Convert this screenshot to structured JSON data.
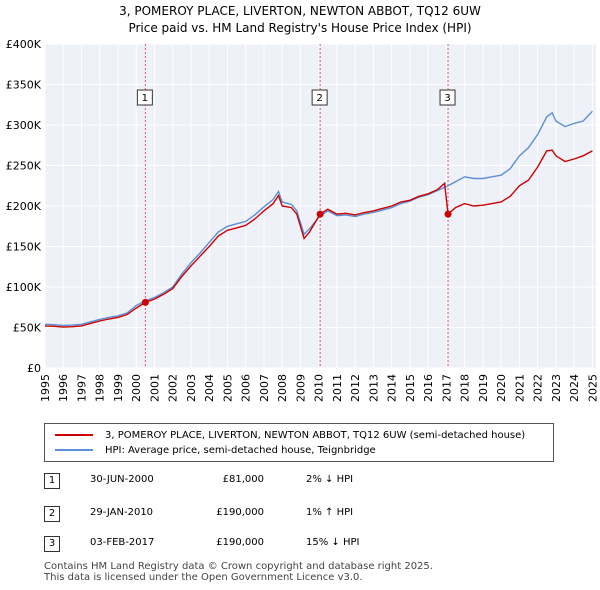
{
  "chart_data": {
    "type": "line",
    "title": "3, POMEROY PLACE, LIVERTON, NEWTON ABBOT, TQ12 6UW",
    "subtitle": "Price paid vs. HM Land Registry's House Price Index (HPI)",
    "xlabel": "",
    "ylabel": "",
    "xlim": [
      1995,
      2025.2
    ],
    "ylim": [
      0,
      400000
    ],
    "y_ticks": [
      {
        "value": 0,
        "label": "£0"
      },
      {
        "value": 50000,
        "label": "£50K"
      },
      {
        "value": 100000,
        "label": "£100K"
      },
      {
        "value": 150000,
        "label": "£150K"
      },
      {
        "value": 200000,
        "label": "£200K"
      },
      {
        "value": 250000,
        "label": "£250K"
      },
      {
        "value": 300000,
        "label": "£300K"
      },
      {
        "value": 350000,
        "label": "£350K"
      },
      {
        "value": 400000,
        "label": "£400K"
      }
    ],
    "x_ticks": [
      "1995",
      "1996",
      "1997",
      "1998",
      "1999",
      "2000",
      "2001",
      "2002",
      "2003",
      "2004",
      "2005",
      "2006",
      "2007",
      "2008",
      "2009",
      "2010",
      "2011",
      "2012",
      "2013",
      "2014",
      "2015",
      "2016",
      "2017",
      "2018",
      "2019",
      "2020",
      "2021",
      "2022",
      "2023",
      "2024",
      "2025"
    ],
    "grid": true,
    "series": [
      {
        "name": "3, POMEROY PLACE, LIVERTON, NEWTON ABBOT, TQ12 6UW (semi-detached house)",
        "color": "#cc0000",
        "points": [
          [
            1995.0,
            52000
          ],
          [
            1995.5,
            51500
          ],
          [
            1996.0,
            50500
          ],
          [
            1996.5,
            51000
          ],
          [
            1997.0,
            52000
          ],
          [
            1997.5,
            55000
          ],
          [
            1998.0,
            58000
          ],
          [
            1998.5,
            60500
          ],
          [
            1999.0,
            62500
          ],
          [
            1999.5,
            66000
          ],
          [
            2000.0,
            74000
          ],
          [
            2000.5,
            81000
          ],
          [
            2001.0,
            85000
          ],
          [
            2001.5,
            91000
          ],
          [
            2002.0,
            98000
          ],
          [
            2002.5,
            113000
          ],
          [
            2003.0,
            126000
          ],
          [
            2003.5,
            138000
          ],
          [
            2004.0,
            150000
          ],
          [
            2004.5,
            163000
          ],
          [
            2005.0,
            170000
          ],
          [
            2005.5,
            173000
          ],
          [
            2006.0,
            176000
          ],
          [
            2006.5,
            184000
          ],
          [
            2007.0,
            194000
          ],
          [
            2007.5,
            203000
          ],
          [
            2007.8,
            213000
          ],
          [
            2008.0,
            200000
          ],
          [
            2008.5,
            198000
          ],
          [
            2008.8,
            190000
          ],
          [
            2009.2,
            160000
          ],
          [
            2009.5,
            168000
          ],
          [
            2010.08,
            190000
          ],
          [
            2010.5,
            196000
          ],
          [
            2011.0,
            190000
          ],
          [
            2011.5,
            191000
          ],
          [
            2012.0,
            189000
          ],
          [
            2012.5,
            192000
          ],
          [
            2013.0,
            194000
          ],
          [
            2013.5,
            197000
          ],
          [
            2014.0,
            200000
          ],
          [
            2014.5,
            205000
          ],
          [
            2015.0,
            207000
          ],
          [
            2015.5,
            212000
          ],
          [
            2016.0,
            215000
          ],
          [
            2016.5,
            220000
          ],
          [
            2016.9,
            228000
          ],
          [
            2017.09,
            190000
          ],
          [
            2017.5,
            198000
          ],
          [
            2018.0,
            203000
          ],
          [
            2018.5,
            200000
          ],
          [
            2019.0,
            201000
          ],
          [
            2019.5,
            203000
          ],
          [
            2020.0,
            205000
          ],
          [
            2020.5,
            212000
          ],
          [
            2021.0,
            225000
          ],
          [
            2021.5,
            232000
          ],
          [
            2022.0,
            248000
          ],
          [
            2022.5,
            268000
          ],
          [
            2022.8,
            269000
          ],
          [
            2023.0,
            262000
          ],
          [
            2023.5,
            255000
          ],
          [
            2024.0,
            258000
          ],
          [
            2024.5,
            262000
          ],
          [
            2025.0,
            268000
          ]
        ]
      },
      {
        "name": "HPI: Average price, semi-detached house, Teignbridge",
        "color": "#5b8fd6",
        "points": [
          [
            1995.0,
            54000
          ],
          [
            1995.5,
            53500
          ],
          [
            1996.0,
            52500
          ],
          [
            1996.5,
            53000
          ],
          [
            1997.0,
            54000
          ],
          [
            1997.5,
            57000
          ],
          [
            1998.0,
            60000
          ],
          [
            1998.5,
            62500
          ],
          [
            1999.0,
            64500
          ],
          [
            1999.5,
            68000
          ],
          [
            2000.0,
            77000
          ],
          [
            2000.5,
            83000
          ],
          [
            2001.0,
            87000
          ],
          [
            2001.5,
            93000
          ],
          [
            2002.0,
            100000
          ],
          [
            2002.5,
            116000
          ],
          [
            2003.0,
            130000
          ],
          [
            2003.5,
            142000
          ],
          [
            2004.0,
            155000
          ],
          [
            2004.5,
            168000
          ],
          [
            2005.0,
            175000
          ],
          [
            2005.5,
            178000
          ],
          [
            2006.0,
            181000
          ],
          [
            2006.5,
            189000
          ],
          [
            2007.0,
            199000
          ],
          [
            2007.5,
            208000
          ],
          [
            2007.8,
            218000
          ],
          [
            2008.0,
            205000
          ],
          [
            2008.5,
            202000
          ],
          [
            2008.8,
            194000
          ],
          [
            2009.2,
            165000
          ],
          [
            2009.5,
            172000
          ],
          [
            2010.08,
            188000
          ],
          [
            2010.5,
            194000
          ],
          [
            2011.0,
            188000
          ],
          [
            2011.5,
            189000
          ],
          [
            2012.0,
            187000
          ],
          [
            2012.5,
            190000
          ],
          [
            2013.0,
            192000
          ],
          [
            2013.5,
            195000
          ],
          [
            2014.0,
            198000
          ],
          [
            2014.5,
            203000
          ],
          [
            2015.0,
            206000
          ],
          [
            2015.5,
            211000
          ],
          [
            2016.0,
            214000
          ],
          [
            2016.5,
            219000
          ],
          [
            2017.09,
            225000
          ],
          [
            2017.5,
            230000
          ],
          [
            2018.0,
            236000
          ],
          [
            2018.5,
            234000
          ],
          [
            2019.0,
            234000
          ],
          [
            2019.5,
            236000
          ],
          [
            2020.0,
            238000
          ],
          [
            2020.5,
            246000
          ],
          [
            2021.0,
            262000
          ],
          [
            2021.5,
            272000
          ],
          [
            2022.0,
            288000
          ],
          [
            2022.5,
            310000
          ],
          [
            2022.8,
            315000
          ],
          [
            2023.0,
            305000
          ],
          [
            2023.5,
            298000
          ],
          [
            2024.0,
            302000
          ],
          [
            2024.5,
            305000
          ],
          [
            2025.0,
            317000
          ]
        ]
      }
    ],
    "sales": [
      {
        "num": "1",
        "x": 2000.5,
        "value": 81000
      },
      {
        "num": "2",
        "x": 2010.08,
        "value": 190000
      },
      {
        "num": "3",
        "x": 2017.09,
        "value": 190000
      }
    ]
  },
  "legend": {
    "property_label": "3, POMEROY PLACE, LIVERTON, NEWTON ABBOT, TQ12 6UW (semi-detached house)",
    "hpi_label": "HPI: Average price, semi-detached house, Teignbridge"
  },
  "transactions": [
    {
      "num": "1",
      "date": "30-JUN-2000",
      "price": "£81,000",
      "hpi": "2% ↓ HPI"
    },
    {
      "num": "2",
      "date": "29-JAN-2010",
      "price": "£190,000",
      "hpi": "1% ↑ HPI"
    },
    {
      "num": "3",
      "date": "03-FEB-2017",
      "price": "£190,000",
      "hpi": "15% ↓ HPI"
    }
  ],
  "footer": {
    "line1": "Contains HM Land Registry data © Crown copyright and database right 2025.",
    "line2": "This data is licensed under the Open Government Licence v3.0."
  }
}
